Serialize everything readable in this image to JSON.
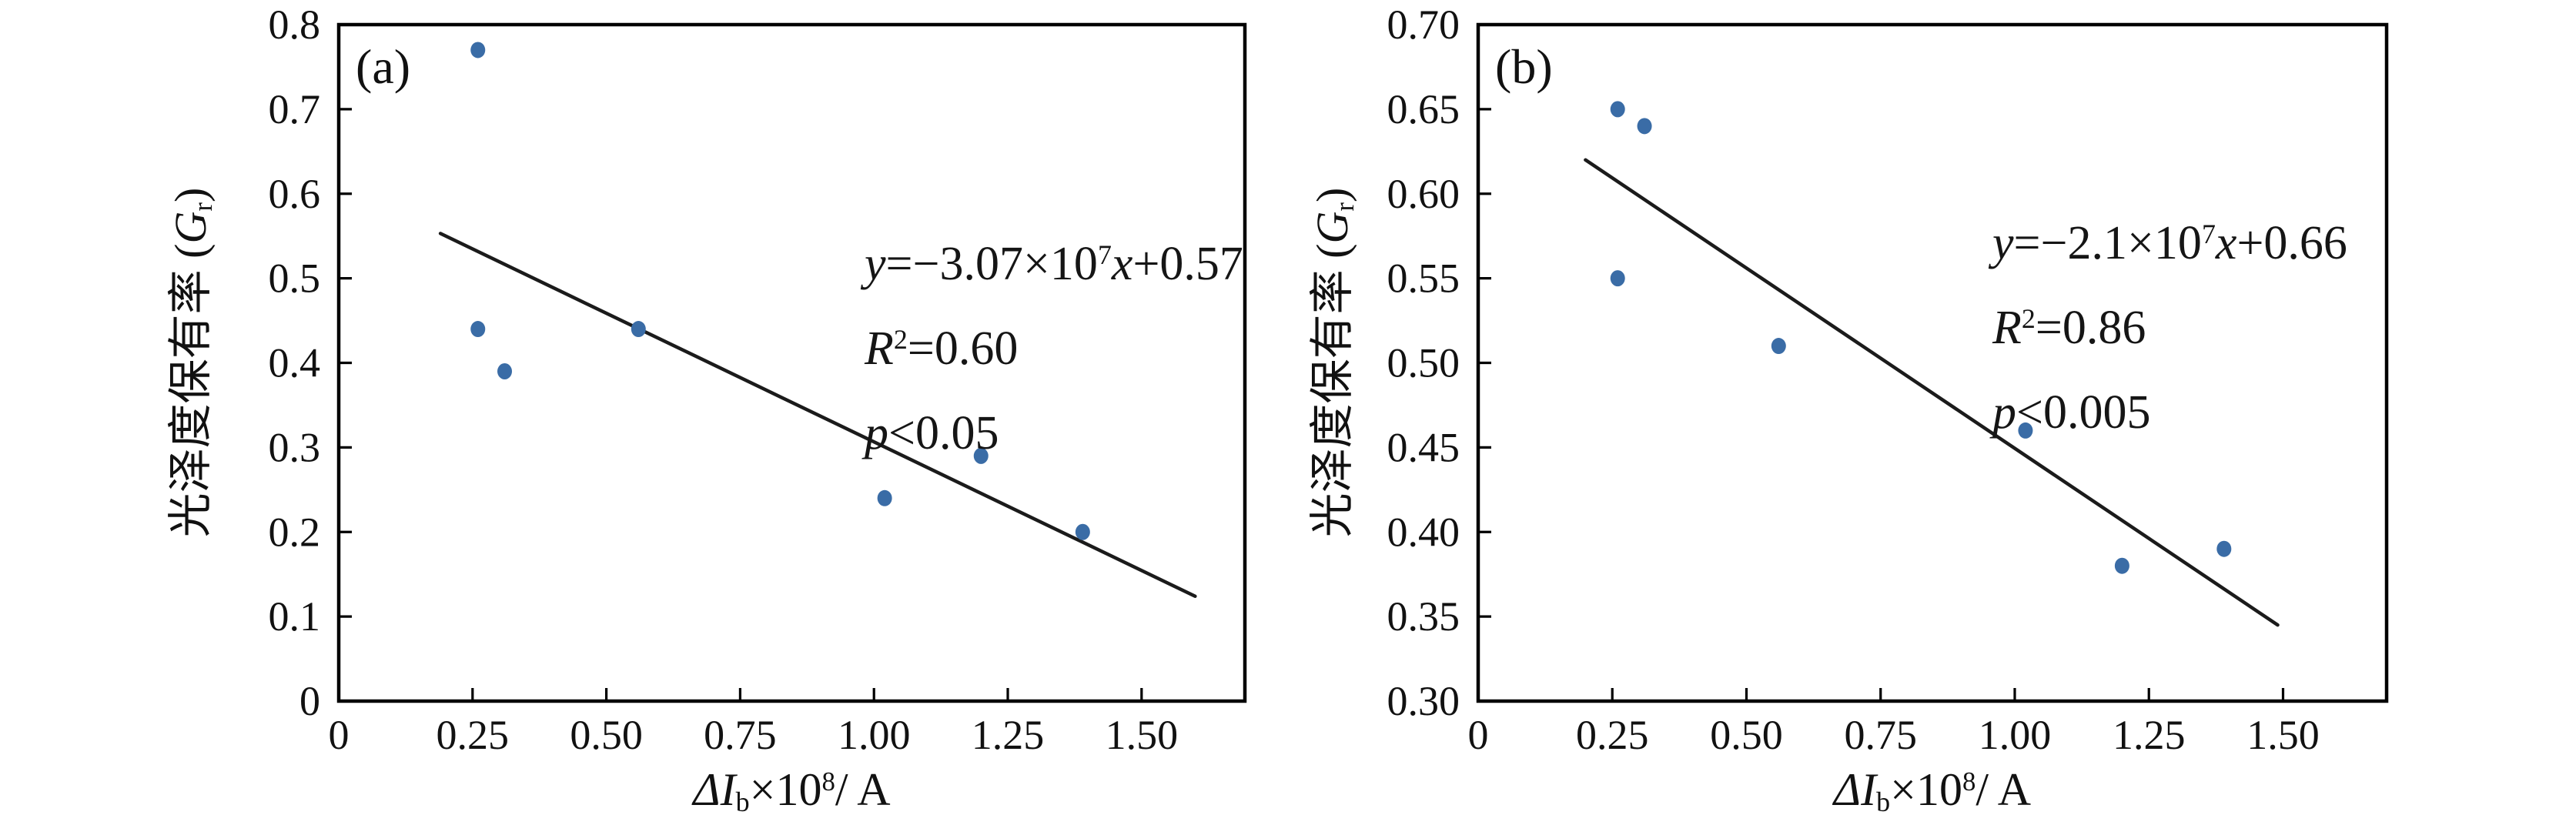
{
  "figure": {
    "background": "#ffffff",
    "axis_color": "#000000",
    "line_color": "#1b1b1b",
    "marker_color": "#3a6ca6"
  },
  "axis_label_parts": {
    "x": {
      "delta_i": "ΔI",
      "sub": "b",
      "times": "×10",
      "exp": "8",
      "unit": "/ A"
    },
    "y": {
      "prefix": "光泽度保有率 (",
      "gvar": "G",
      "sub": "r",
      "suffix": ")"
    }
  },
  "chart_data": [
    {
      "type": "scatter",
      "panel_label": "(a)",
      "title": "",
      "xlabel": "ΔI_b×10^8/ A",
      "ylabel": "光泽度保有率 (G_r)",
      "xlim": [
        0,
        1.693
      ],
      "ylim": [
        0,
        0.8
      ],
      "grid": false,
      "legend": null,
      "xtick_values": [
        0,
        0.25,
        0.5,
        0.75,
        1.0,
        1.25,
        1.5
      ],
      "xtick_labels": [
        "0",
        "0.25",
        "0.50",
        "0.75",
        "1.00",
        "1.25",
        "1.50"
      ],
      "ytick_values": [
        0,
        0.1,
        0.2,
        0.3,
        0.4,
        0.5,
        0.6,
        0.7,
        0.8
      ],
      "ytick_labels": [
        "0",
        "0.1",
        "0.2",
        "0.3",
        "0.4",
        "0.5",
        "0.6",
        "0.7",
        "0.8"
      ],
      "points": [
        [
          0.26,
          0.77
        ],
        [
          0.26,
          0.44
        ],
        [
          0.31,
          0.39
        ],
        [
          0.56,
          0.44
        ],
        [
          1.02,
          0.24
        ],
        [
          1.2,
          0.29
        ],
        [
          1.39,
          0.2
        ]
      ],
      "fit_line": {
        "x1": 0.19,
        "y1": 0.553,
        "x2": 1.6,
        "y2": 0.124
      },
      "annotation": {
        "equation": {
          "lhs": "y",
          "pre": "=−3.07×10",
          "exp": "7",
          "xvar": "x",
          "tail": "+0.57"
        },
        "r2": {
          "lhs": "R",
          "exp": "2",
          "tail": "=0.60"
        },
        "p": {
          "lhs": "p",
          "tail": "<0.05"
        }
      }
    },
    {
      "type": "scatter",
      "panel_label": "(b)",
      "title": "",
      "xlabel": "ΔI_b×10^8/ A",
      "ylabel": "光泽度保有率 (G_r)",
      "xlim": [
        0,
        1.693
      ],
      "ylim": [
        0.3,
        0.7
      ],
      "grid": false,
      "legend": null,
      "xtick_values": [
        0,
        0.25,
        0.5,
        0.75,
        1.0,
        1.25,
        1.5
      ],
      "xtick_labels": [
        "0",
        "0.25",
        "0.50",
        "0.75",
        "1.00",
        "1.25",
        "1.50"
      ],
      "ytick_values": [
        0.3,
        0.35,
        0.4,
        0.45,
        0.5,
        0.55,
        0.6,
        0.65,
        0.7
      ],
      "ytick_labels": [
        "0.30",
        "0.35",
        "0.40",
        "0.45",
        "0.50",
        "0.55",
        "0.60",
        "0.65",
        "0.70"
      ],
      "points": [
        [
          0.26,
          0.65
        ],
        [
          0.31,
          0.64
        ],
        [
          0.26,
          0.55
        ],
        [
          0.56,
          0.51
        ],
        [
          1.02,
          0.46
        ],
        [
          1.2,
          0.38
        ],
        [
          1.39,
          0.39
        ]
      ],
      "fit_line": {
        "x1": 0.2,
        "y1": 0.62,
        "x2": 1.49,
        "y2": 0.345
      },
      "annotation": {
        "equation": {
          "lhs": "y",
          "pre": "=−2.1×10",
          "exp": "7",
          "xvar": "x",
          "tail": "+0.66"
        },
        "r2": {
          "lhs": "R",
          "exp": "2",
          "tail": "=0.86"
        },
        "p": {
          "lhs": "p",
          "tail": "<0.005"
        }
      }
    }
  ]
}
